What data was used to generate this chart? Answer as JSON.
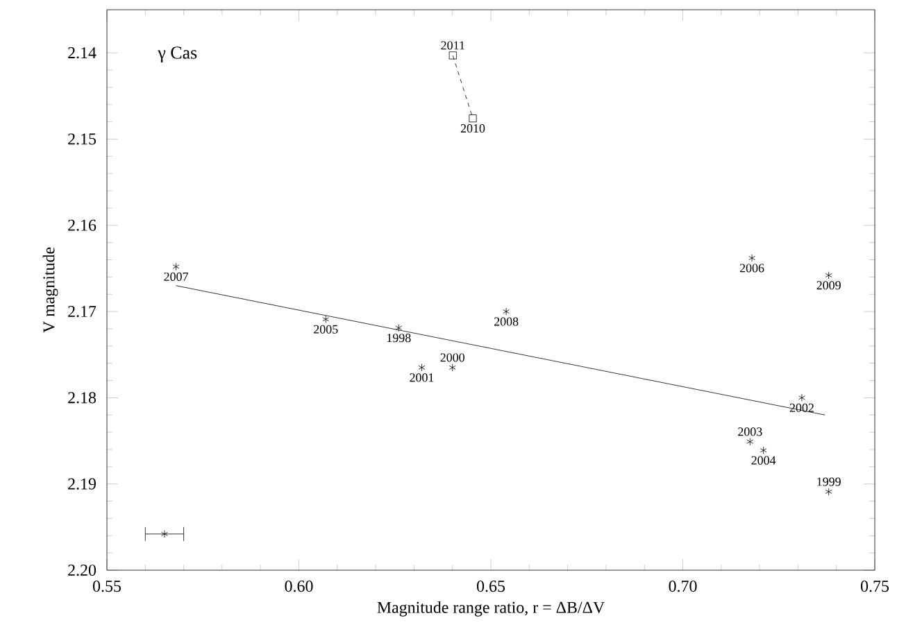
{
  "chart_data": {
    "type": "scatter",
    "xlabel": "Magnitude range ratio, r = ΔB/ΔV",
    "ylabel": "V magnitude",
    "annotations": [
      "γ Cas",
      {
        "text": "2007",
        "x": 0.568,
        "y": 2.1648
      },
      {
        "text": "2005",
        "x": 0.607,
        "y": 2.1709
      },
      {
        "text": "1998",
        "x": 0.626,
        "y": 2.1719
      },
      {
        "text": "2001",
        "x": 0.632,
        "y": 2.1765
      },
      {
        "text": "2000",
        "x": 0.64,
        "y": 2.1765
      },
      {
        "text": "2008",
        "x": 0.654,
        "y": 2.17
      },
      {
        "text": "2006",
        "x": 0.718,
        "y": 2.1638
      },
      {
        "text": "2009",
        "x": 0.738,
        "y": 2.1658
      },
      {
        "text": "2002",
        "x": 0.731,
        "y": 2.18
      },
      {
        "text": "2003",
        "x": 0.7175,
        "y": 2.1851
      },
      {
        "text": "2004",
        "x": 0.721,
        "y": 2.1861
      },
      {
        "text": "1999",
        "x": 0.738,
        "y": 2.1909
      },
      {
        "text": "2011",
        "x": 0.6401,
        "y": 2.1403
      },
      {
        "text": "2010",
        "x": 0.6453,
        "y": 2.1476
      }
    ],
    "xlim": [
      0.55,
      0.75
    ],
    "ylim": [
      2.2,
      2.135
    ],
    "xticks": [
      {
        "value": 0.55,
        "label": "0.55"
      },
      {
        "value": 0.6,
        "label": "0.60"
      },
      {
        "value": 0.65,
        "label": "0.65"
      },
      {
        "value": 0.7,
        "label": "0.70"
      },
      {
        "value": 0.75,
        "label": "0.75"
      }
    ],
    "yticks": [
      {
        "value": 2.14,
        "label": "2.14"
      },
      {
        "value": 2.15,
        "label": "2.15"
      },
      {
        "value": 2.16,
        "label": "2.16"
      },
      {
        "value": 2.17,
        "label": "2.17"
      },
      {
        "value": 2.18,
        "label": "2.18"
      },
      {
        "value": 2.19,
        "label": "2.19"
      },
      {
        "value": 2.2,
        "label": "2.20"
      }
    ],
    "grid": false,
    "series": [
      {
        "marker": "cross",
        "color": "#000000",
        "x": [
          0.568,
          0.607,
          0.626,
          0.632,
          0.64,
          0.654,
          0.718,
          0.738,
          0.731,
          0.7175,
          0.721,
          0.738
        ],
        "values": [
          2.1648,
          2.1709,
          2.1719,
          2.1765,
          2.1765,
          2.17,
          2.1638,
          2.1658,
          2.18,
          2.1851,
          2.1861,
          2.1909
        ]
      },
      {
        "type": "line",
        "marker": "square",
        "line_style": "dashed",
        "color": "#000000",
        "x": [
          0.6401,
          0.6453
        ],
        "values": [
          2.1403,
          2.1476
        ]
      },
      {
        "type": "line",
        "marker": "none",
        "line_style": "solid",
        "color": "#000000",
        "x": [
          0.568,
          0.737
        ],
        "values": [
          2.167,
          2.182
        ]
      },
      {
        "marker": "cross",
        "color": "#000000",
        "x": [
          0.565
        ],
        "values": [
          2.1958
        ],
        "xerrors": [
          0.005
        ]
      }
    ]
  }
}
